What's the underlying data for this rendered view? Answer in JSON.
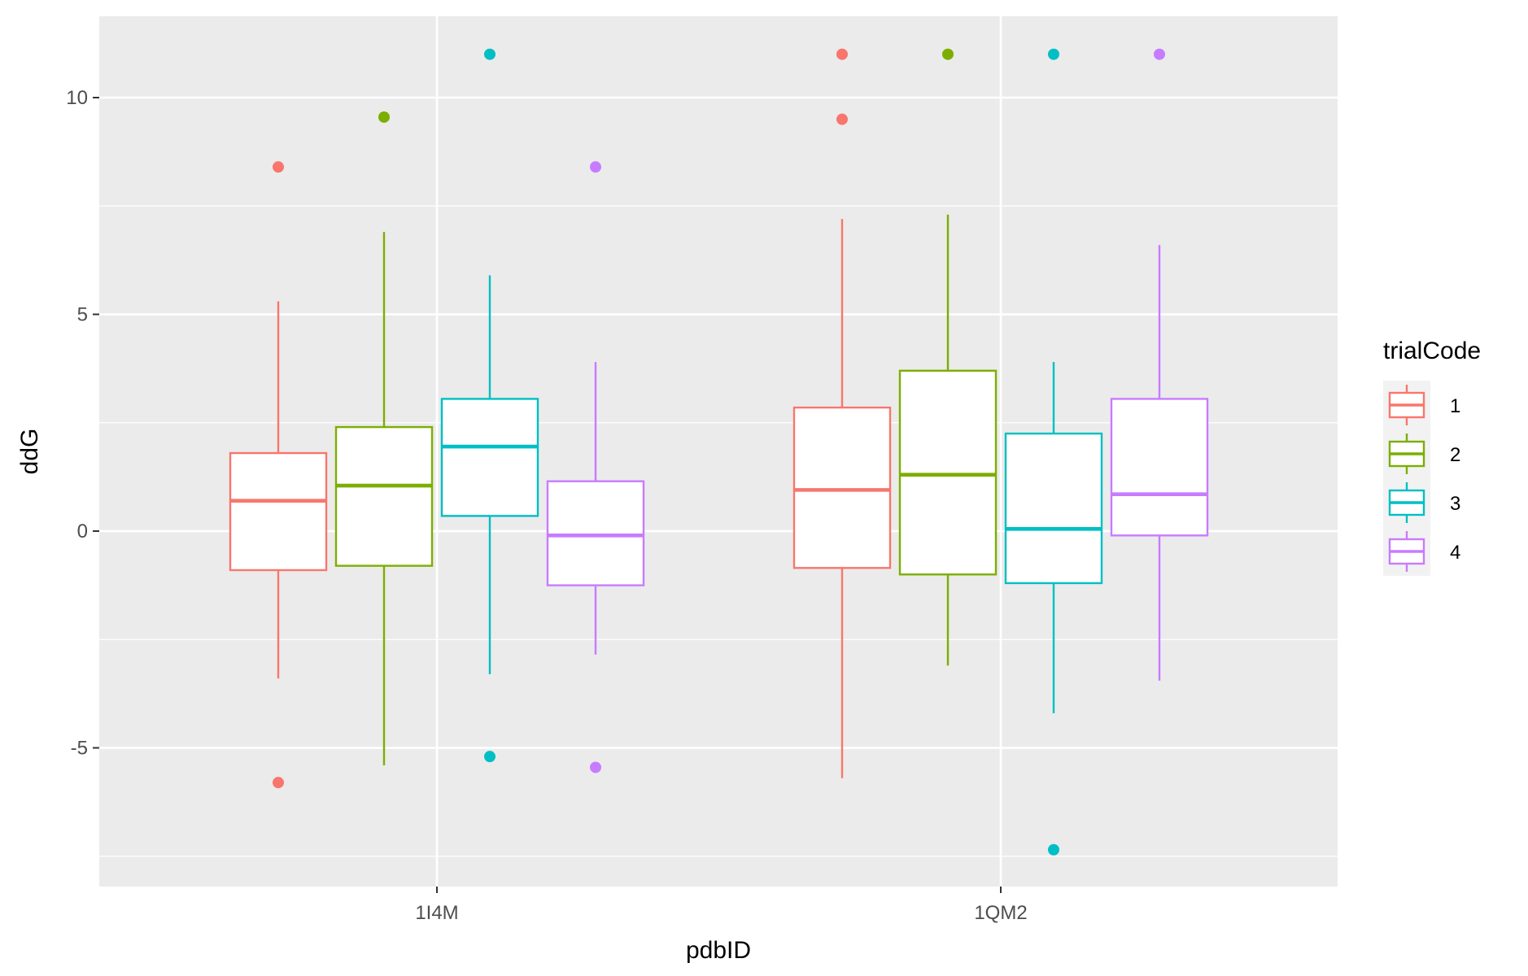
{
  "chart_data": {
    "type": "boxplot",
    "xlabel": "pdbID",
    "ylabel": "ddG",
    "categories": [
      "1I4M",
      "1QM2"
    ],
    "ylim": [
      -8.0,
      12.0
    ],
    "y_ticks": [
      -5,
      0,
      5,
      10
    ],
    "y_tick_labels": [
      "-5",
      "0",
      "5",
      "10"
    ],
    "grid": true,
    "legend": {
      "title": "trialCode",
      "position": "right",
      "entries": [
        "1",
        "2",
        "3",
        "4"
      ]
    },
    "series": [
      {
        "name": "1",
        "color": "#F8766D",
        "boxes": [
          {
            "category": "1I4M",
            "min": -3.4,
            "q1": -0.9,
            "median": 0.7,
            "q3": 1.8,
            "max": 5.3,
            "outliers": [
              8.4,
              -5.8
            ]
          },
          {
            "category": "1QM2",
            "min": -5.7,
            "q1": -0.85,
            "median": 0.95,
            "q3": 2.85,
            "max": 7.2,
            "outliers": [
              11.0,
              9.5
            ]
          }
        ]
      },
      {
        "name": "2",
        "color": "#7CAE00",
        "boxes": [
          {
            "category": "1I4M",
            "min": -5.4,
            "q1": -0.8,
            "median": 1.05,
            "q3": 2.4,
            "max": 6.9,
            "outliers": [
              9.55
            ]
          },
          {
            "category": "1QM2",
            "min": -3.1,
            "q1": -1.0,
            "median": 1.3,
            "q3": 3.7,
            "max": 7.3,
            "outliers": [
              11.0
            ]
          }
        ]
      },
      {
        "name": "3",
        "color": "#00BFC4",
        "boxes": [
          {
            "category": "1I4M",
            "min": -3.3,
            "q1": 0.35,
            "median": 1.95,
            "q3": 3.05,
            "max": 5.9,
            "outliers": [
              11.0,
              -5.2
            ]
          },
          {
            "category": "1QM2",
            "min": -4.2,
            "q1": -1.2,
            "median": 0.05,
            "q3": 2.25,
            "max": 3.9,
            "outliers": [
              11.0,
              -7.35
            ]
          }
        ]
      },
      {
        "name": "4",
        "color": "#C77CFF",
        "boxes": [
          {
            "category": "1I4M",
            "min": -2.85,
            "q1": -1.25,
            "median": -0.1,
            "q3": 1.15,
            "max": 3.9,
            "outliers": [
              8.4,
              -5.45
            ]
          },
          {
            "category": "1QM2",
            "min": -3.45,
            "q1": -0.1,
            "median": 0.85,
            "q3": 3.05,
            "max": 6.6,
            "outliers": [
              11.0
            ]
          }
        ]
      }
    ]
  }
}
